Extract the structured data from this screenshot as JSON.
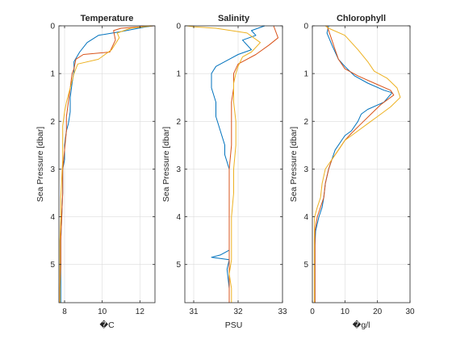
{
  "chart_data": [
    {
      "type": "line",
      "title": "Temperature",
      "xlabel": "�C",
      "ylabel": "Sea Pressure [dbar]",
      "xlim": [
        7.7,
        12.8
      ],
      "ylim": [
        0,
        5.8
      ],
      "y_reversed": true,
      "xticks": [
        8,
        10,
        12
      ],
      "yticks": [
        0,
        1,
        2,
        3,
        4,
        5
      ],
      "grid": true,
      "series": [
        {
          "color": "#0072BD",
          "points": [
            [
              12.7,
              0.0
            ],
            [
              12.2,
              0.03
            ],
            [
              11.0,
              0.12
            ],
            [
              9.8,
              0.2
            ],
            [
              9.2,
              0.35
            ],
            [
              8.8,
              0.55
            ],
            [
              8.5,
              0.75
            ],
            [
              8.5,
              0.95
            ],
            [
              8.4,
              1.2
            ],
            [
              8.3,
              1.5
            ],
            [
              8.3,
              1.8
            ],
            [
              8.2,
              2.05
            ],
            [
              8.1,
              2.2
            ],
            [
              8.0,
              2.5
            ],
            [
              8.0,
              2.8
            ],
            [
              7.9,
              3.0
            ],
            [
              7.9,
              3.5
            ],
            [
              7.85,
              4.0
            ],
            [
              7.8,
              4.5
            ],
            [
              7.8,
              5.0
            ],
            [
              7.8,
              5.5
            ],
            [
              7.8,
              5.8
            ]
          ]
        },
        {
          "color": "#D95319",
          "points": [
            [
              12.75,
              0.0
            ],
            [
              12.0,
              0.02
            ],
            [
              11.0,
              0.05
            ],
            [
              10.6,
              0.1
            ],
            [
              10.7,
              0.3
            ],
            [
              10.4,
              0.55
            ],
            [
              9.0,
              0.6
            ],
            [
              8.6,
              0.7
            ],
            [
              8.5,
              0.9
            ],
            [
              8.4,
              1.0
            ],
            [
              8.3,
              1.3
            ],
            [
              8.2,
              1.6
            ],
            [
              8.1,
              1.9
            ],
            [
              8.1,
              2.2
            ],
            [
              8.0,
              2.6
            ],
            [
              7.9,
              3.0
            ],
            [
              7.9,
              3.5
            ],
            [
              7.85,
              4.0
            ],
            [
              7.8,
              4.5
            ],
            [
              7.8,
              5.0
            ],
            [
              7.75,
              5.5
            ],
            [
              7.75,
              5.8
            ]
          ]
        },
        {
          "color": "#EDB120",
          "points": [
            [
              12.65,
              0.0
            ],
            [
              11.5,
              0.05
            ],
            [
              10.8,
              0.15
            ],
            [
              10.9,
              0.25
            ],
            [
              10.5,
              0.5
            ],
            [
              9.8,
              0.7
            ],
            [
              8.7,
              0.8
            ],
            [
              8.5,
              1.0
            ],
            [
              8.3,
              1.3
            ],
            [
              8.1,
              1.6
            ],
            [
              8.0,
              1.8
            ],
            [
              7.9,
              2.1
            ],
            [
              7.9,
              2.5
            ],
            [
              7.9,
              2.8
            ],
            [
              7.85,
              3.2
            ],
            [
              7.8,
              3.6
            ],
            [
              7.8,
              4.0
            ],
            [
              7.75,
              4.5
            ],
            [
              7.75,
              5.0
            ],
            [
              7.75,
              5.5
            ],
            [
              7.75,
              5.8
            ]
          ]
        }
      ]
    },
    {
      "type": "line",
      "title": "Salinity",
      "xlabel": "PSU",
      "ylabel": "Sea Pressure [dbar]",
      "xlim": [
        30.8,
        33.0
      ],
      "ylim": [
        0,
        5.8
      ],
      "y_reversed": true,
      "xticks": [
        31,
        32,
        33
      ],
      "yticks": [
        0,
        1,
        2,
        3,
        4,
        5
      ],
      "grid": true,
      "series": [
        {
          "color": "#0072BD",
          "points": [
            [
              32.6,
              0.0
            ],
            [
              32.3,
              0.1
            ],
            [
              32.4,
              0.2
            ],
            [
              32.1,
              0.3
            ],
            [
              32.3,
              0.5
            ],
            [
              32.0,
              0.6
            ],
            [
              31.8,
              0.7
            ],
            [
              31.5,
              0.85
            ],
            [
              31.4,
              1.0
            ],
            [
              31.4,
              1.3
            ],
            [
              31.5,
              1.6
            ],
            [
              31.5,
              1.9
            ],
            [
              31.6,
              2.2
            ],
            [
              31.7,
              2.5
            ],
            [
              31.7,
              2.7
            ],
            [
              31.8,
              3.0
            ],
            [
              31.8,
              3.5
            ],
            [
              31.8,
              4.0
            ],
            [
              31.8,
              4.5
            ],
            [
              31.8,
              4.7
            ],
            [
              31.6,
              4.8
            ],
            [
              31.4,
              4.85
            ],
            [
              31.8,
              4.9
            ],
            [
              31.75,
              5.1
            ],
            [
              31.8,
              5.5
            ],
            [
              31.8,
              5.8
            ]
          ]
        },
        {
          "color": "#D95319",
          "points": [
            [
              32.8,
              0.0
            ],
            [
              32.9,
              0.25
            ],
            [
              32.7,
              0.4
            ],
            [
              32.4,
              0.6
            ],
            [
              32.0,
              0.8
            ],
            [
              31.9,
              1.0
            ],
            [
              31.9,
              1.3
            ],
            [
              31.85,
              1.6
            ],
            [
              31.85,
              2.0
            ],
            [
              31.85,
              2.5
            ],
            [
              31.8,
              3.0
            ],
            [
              31.8,
              3.5
            ],
            [
              31.8,
              4.0
            ],
            [
              31.8,
              4.5
            ],
            [
              31.8,
              5.0
            ],
            [
              31.8,
              5.5
            ],
            [
              31.8,
              5.8
            ]
          ]
        },
        {
          "color": "#EDB120",
          "points": [
            [
              30.85,
              0.0
            ],
            [
              31.0,
              0.02
            ],
            [
              31.5,
              0.05
            ],
            [
              32.2,
              0.15
            ],
            [
              32.5,
              0.35
            ],
            [
              32.3,
              0.55
            ],
            [
              32.1,
              0.65
            ],
            [
              32.0,
              0.85
            ],
            [
              31.95,
              1.0
            ],
            [
              31.9,
              1.2
            ],
            [
              31.9,
              1.6
            ],
            [
              31.95,
              2.0
            ],
            [
              31.95,
              2.5
            ],
            [
              31.9,
              3.0
            ],
            [
              31.9,
              3.5
            ],
            [
              31.85,
              4.0
            ],
            [
              31.85,
              4.5
            ],
            [
              31.85,
              4.9
            ],
            [
              31.8,
              5.2
            ],
            [
              31.85,
              5.5
            ],
            [
              31.85,
              5.8
            ]
          ]
        }
      ]
    },
    {
      "type": "line",
      "title": "Chlorophyll",
      "xlabel": "�g/l",
      "ylabel": "Sea Pressure [dbar]",
      "xlim": [
        0,
        30
      ],
      "ylim": [
        0,
        5.8
      ],
      "y_reversed": true,
      "xticks": [
        0,
        10,
        20,
        30
      ],
      "yticks": [
        0,
        1,
        2,
        3,
        4,
        5
      ],
      "grid": true,
      "series": [
        {
          "color": "#0072BD",
          "points": [
            [
              5.0,
              0.0
            ],
            [
              4.5,
              0.15
            ],
            [
              6.0,
              0.4
            ],
            [
              8.0,
              0.7
            ],
            [
              10.0,
              0.85
            ],
            [
              13.0,
              1.05
            ],
            [
              17.0,
              1.2
            ],
            [
              22.0,
              1.35
            ],
            [
              24.5,
              1.4
            ],
            [
              22.0,
              1.6
            ],
            [
              17.0,
              1.75
            ],
            [
              15.0,
              1.85
            ],
            [
              14.0,
              2.0
            ],
            [
              12.0,
              2.2
            ],
            [
              10.0,
              2.3
            ],
            [
              9.0,
              2.4
            ],
            [
              8.0,
              2.5
            ],
            [
              7.0,
              2.6
            ],
            [
              6.0,
              2.8
            ],
            [
              5.0,
              3.0
            ],
            [
              4.0,
              3.3
            ],
            [
              3.5,
              3.6
            ],
            [
              3.0,
              3.8
            ],
            [
              2.0,
              4.0
            ],
            [
              1.0,
              4.3
            ],
            [
              0.8,
              4.6
            ],
            [
              0.8,
              5.0
            ],
            [
              0.8,
              5.5
            ],
            [
              0.8,
              5.8
            ]
          ]
        },
        {
          "color": "#D95319",
          "points": [
            [
              4.5,
              0.0
            ],
            [
              5.0,
              0.1
            ],
            [
              6.0,
              0.3
            ],
            [
              7.0,
              0.5
            ],
            [
              8.0,
              0.7
            ],
            [
              10.0,
              0.9
            ],
            [
              14.0,
              1.05
            ],
            [
              19.0,
              1.2
            ],
            [
              24.0,
              1.35
            ],
            [
              25.0,
              1.45
            ],
            [
              21.0,
              1.65
            ],
            [
              18.0,
              1.85
            ],
            [
              15.0,
              2.05
            ],
            [
              12.0,
              2.25
            ],
            [
              10.0,
              2.4
            ],
            [
              8.0,
              2.6
            ],
            [
              6.0,
              2.8
            ],
            [
              5.0,
              3.0
            ],
            [
              4.0,
              3.3
            ],
            [
              3.5,
              3.6
            ],
            [
              2.5,
              3.8
            ],
            [
              1.5,
              4.0
            ],
            [
              0.8,
              4.3
            ],
            [
              0.8,
              4.6
            ],
            [
              0.8,
              5.0
            ],
            [
              0.8,
              5.5
            ],
            [
              0.8,
              5.8
            ]
          ]
        },
        {
          "color": "#EDB120",
          "points": [
            [
              4.0,
              0.0
            ],
            [
              5.0,
              0.05
            ],
            [
              10.0,
              0.2
            ],
            [
              14.0,
              0.5
            ],
            [
              17.0,
              0.75
            ],
            [
              19.0,
              0.95
            ],
            [
              23.0,
              1.1
            ],
            [
              26.0,
              1.3
            ],
            [
              27.0,
              1.5
            ],
            [
              24.0,
              1.7
            ],
            [
              20.0,
              1.9
            ],
            [
              17.0,
              2.05
            ],
            [
              13.0,
              2.25
            ],
            [
              10.0,
              2.4
            ],
            [
              8.0,
              2.6
            ],
            [
              6.0,
              2.8
            ],
            [
              4.0,
              3.0
            ],
            [
              3.0,
              3.3
            ],
            [
              2.5,
              3.6
            ],
            [
              1.5,
              3.8
            ],
            [
              0.7,
              4.0
            ],
            [
              0.6,
              4.5
            ],
            [
              0.6,
              5.0
            ],
            [
              0.6,
              5.5
            ],
            [
              0.6,
              5.8
            ]
          ]
        }
      ]
    }
  ]
}
